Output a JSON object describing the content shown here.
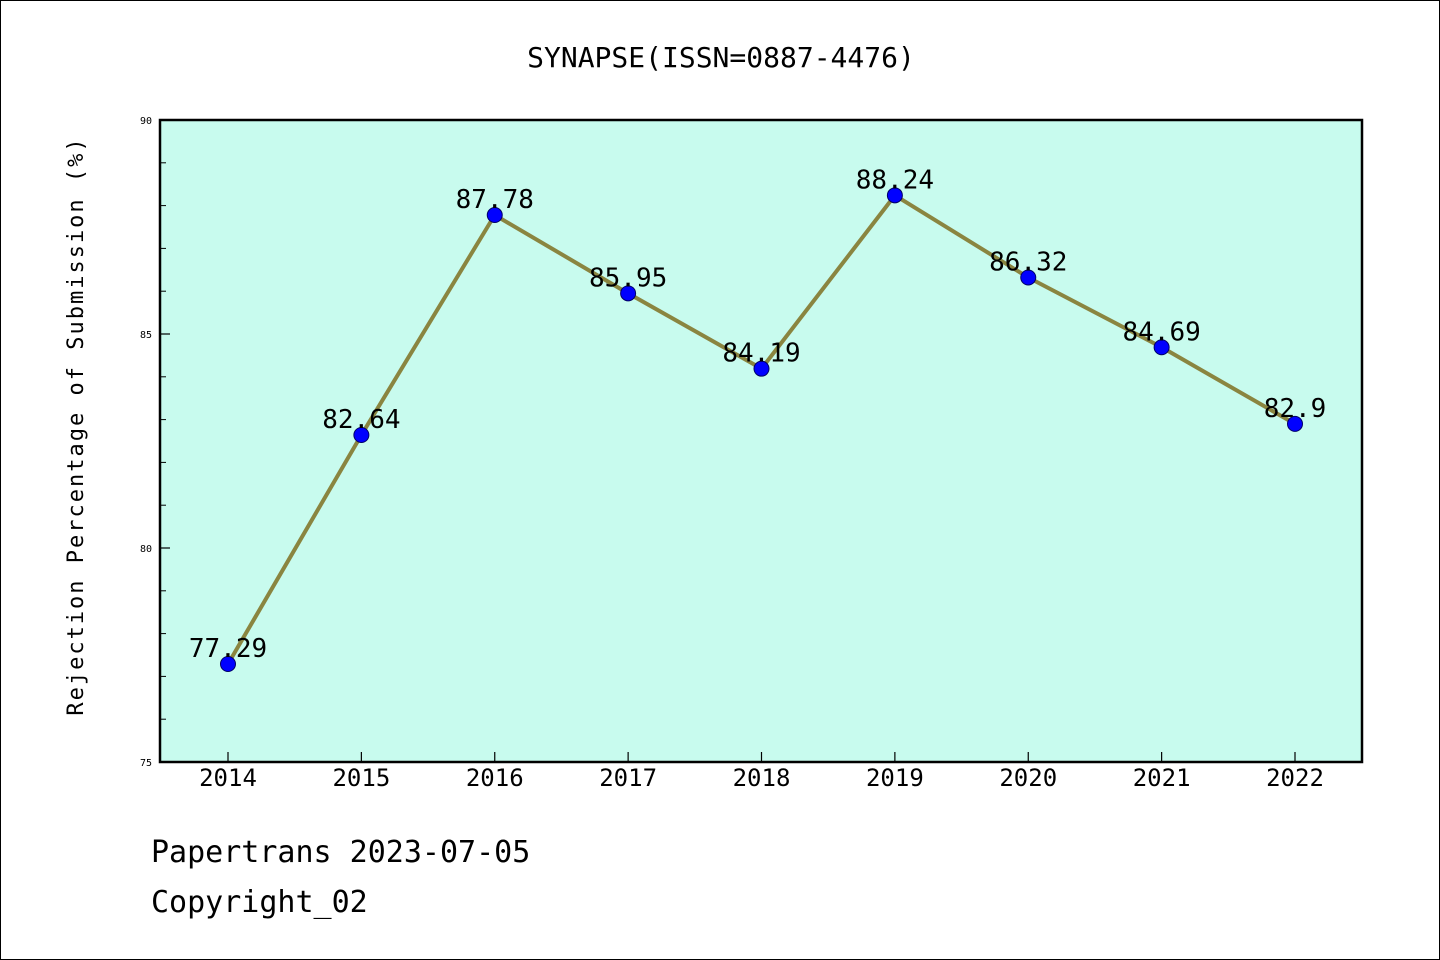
{
  "chart_data": {
    "type": "line",
    "title": "SYNAPSE(ISSN=0887-4476)",
    "xlabel": "",
    "ylabel": "Rejection Percentage of Submission (%)",
    "categories": [
      "2014",
      "2015",
      "2016",
      "2017",
      "2018",
      "2019",
      "2020",
      "2021",
      "2022"
    ],
    "values": [
      77.29,
      82.64,
      87.78,
      85.95,
      84.19,
      88.24,
      86.32,
      84.69,
      82.9
    ],
    "data_labels": [
      "77.29",
      "82.64",
      "87.78",
      "85.95",
      "84.19",
      "88.24",
      "86.32",
      "84.69",
      "82.9"
    ],
    "ylim": [
      75,
      90
    ],
    "yticks": [
      "75",
      "80",
      "85",
      "90"
    ],
    "grid": false,
    "legend": "none",
    "colors": {
      "plot_background": "#c8fbee",
      "line": "#8a8540",
      "marker": "#0000ff"
    }
  },
  "footer": {
    "line1": "Papertrans 2023-07-05",
    "line2": "Copyright_02"
  }
}
